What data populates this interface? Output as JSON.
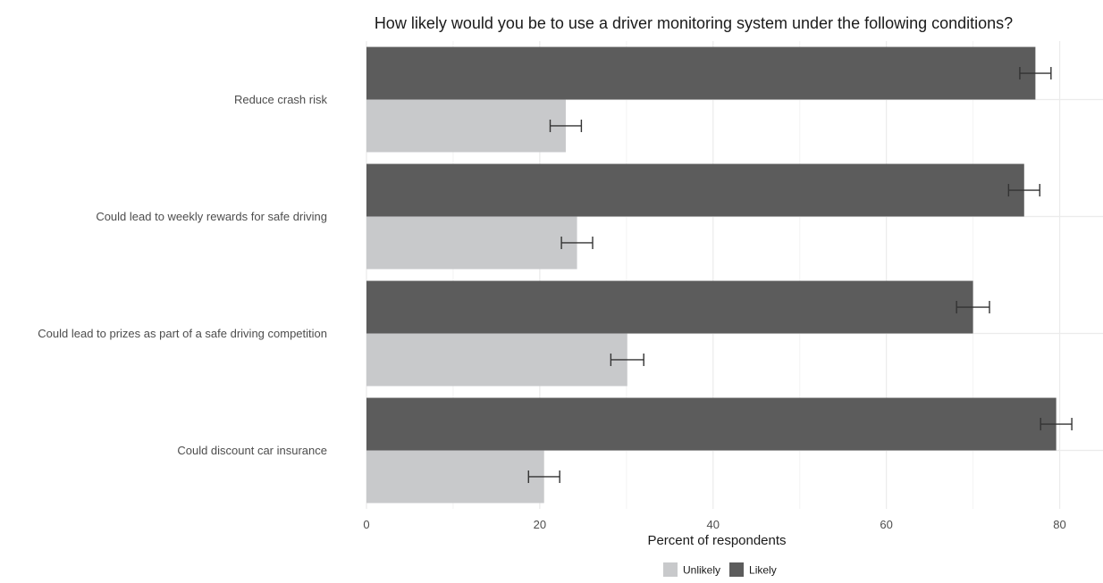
{
  "chart_data": {
    "type": "bar",
    "orientation": "horizontal",
    "title": "How likely would you be to use a driver monitoring system under the following conditions?",
    "xlabel": "Percent of respondents",
    "ylabel": "",
    "xlim": [
      0,
      85
    ],
    "xticks": [
      0,
      20,
      40,
      60,
      80
    ],
    "grid": true,
    "legend_position": "bottom",
    "categories": [
      "Reduce crash risk",
      "Could lead to weekly rewards for safe driving",
      "Could lead to prizes as part of a safe driving competition",
      "Could discount car insurance"
    ],
    "series": [
      {
        "name": "Likely",
        "color": "#5c5c5c",
        "values": [
          77.2,
          75.9,
          70.0,
          79.6
        ],
        "error_low": [
          75.4,
          74.1,
          68.1,
          77.8
        ],
        "error_high": [
          79.0,
          77.7,
          71.9,
          81.4
        ]
      },
      {
        "name": "Unlikely",
        "color": "#c8c9cb",
        "values": [
          23.0,
          24.3,
          30.1,
          20.5
        ],
        "error_low": [
          21.2,
          22.5,
          28.2,
          18.7
        ],
        "error_high": [
          24.8,
          26.1,
          32.0,
          22.3
        ]
      }
    ],
    "legend_order": [
      "Unlikely",
      "Likely"
    ]
  }
}
